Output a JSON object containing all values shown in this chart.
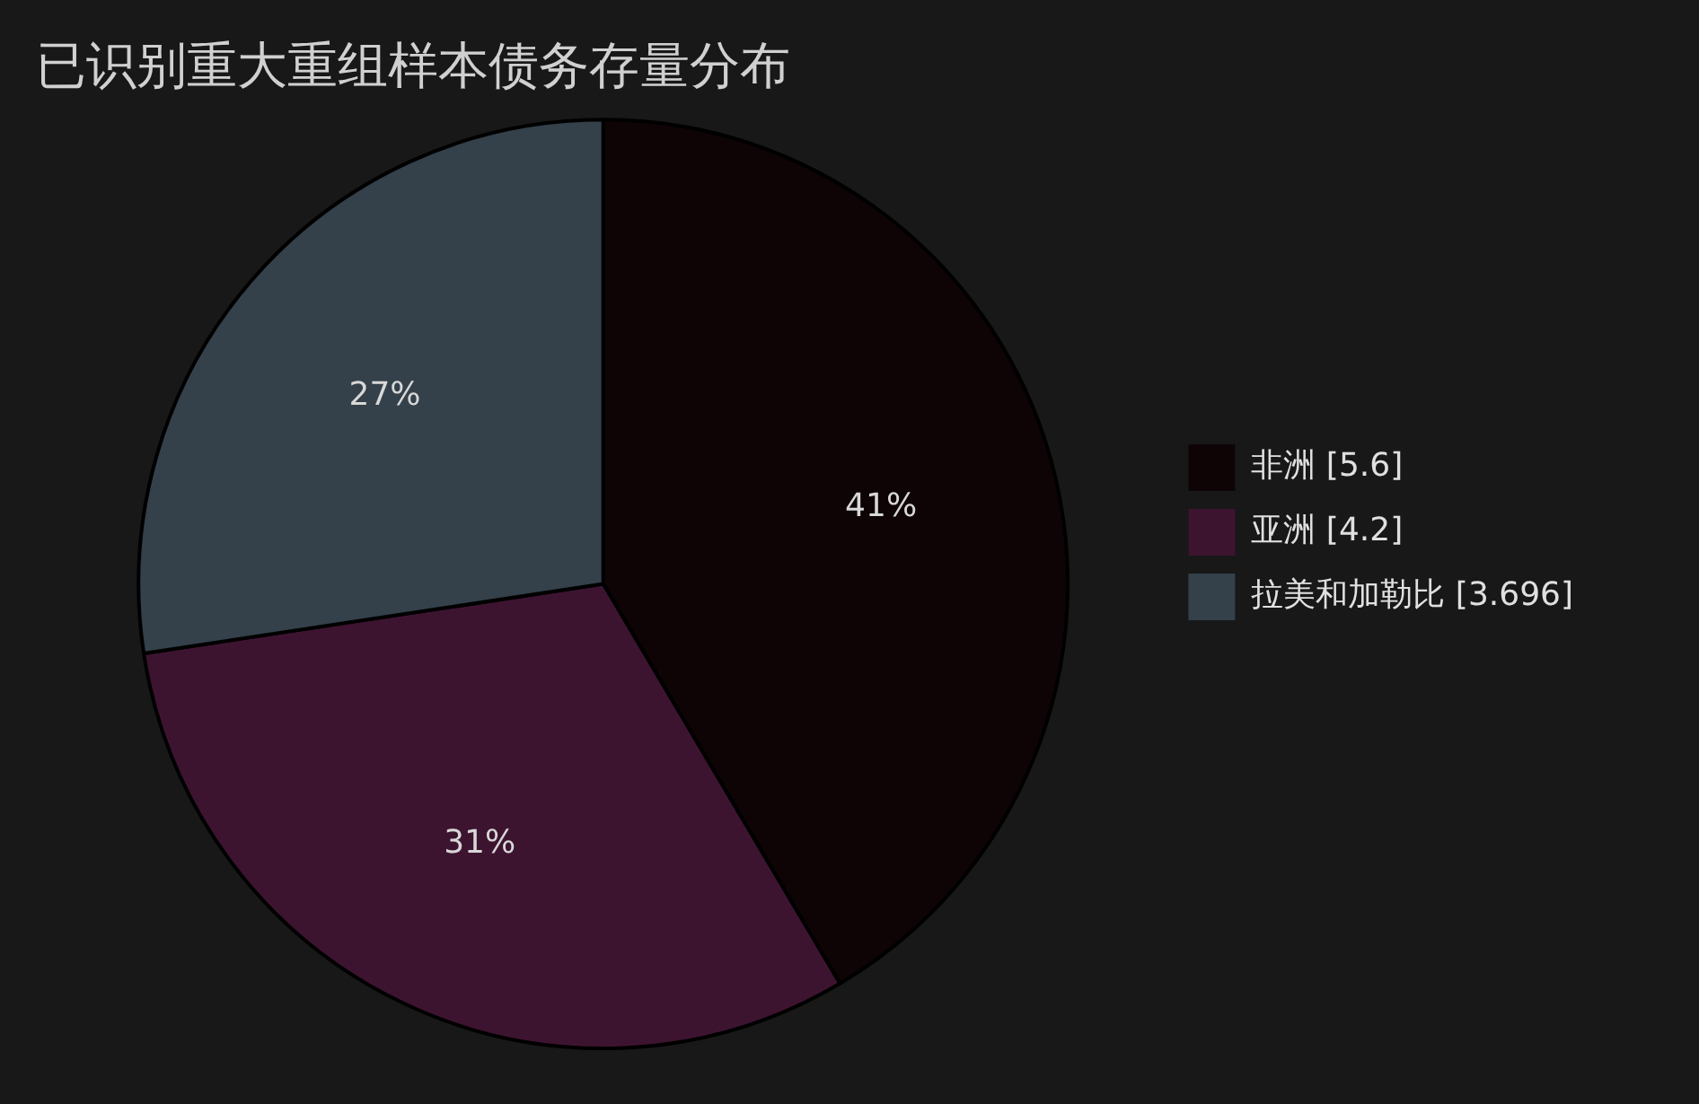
{
  "chart_data": {
    "type": "pie",
    "title": "已识别重大重组样本债务存量分布",
    "categories": [
      "非洲 [5.6]",
      "亚洲 [4.2]",
      "拉美和加勒比 [3.696]"
    ],
    "values": [
      41.49,
      31.12,
      27.39
    ],
    "colors": [
      "#0e0406",
      "#3d1430",
      "#34404a"
    ],
    "value_labels": [
      "41%",
      "31%",
      "27%"
    ],
    "legend": "right"
  }
}
